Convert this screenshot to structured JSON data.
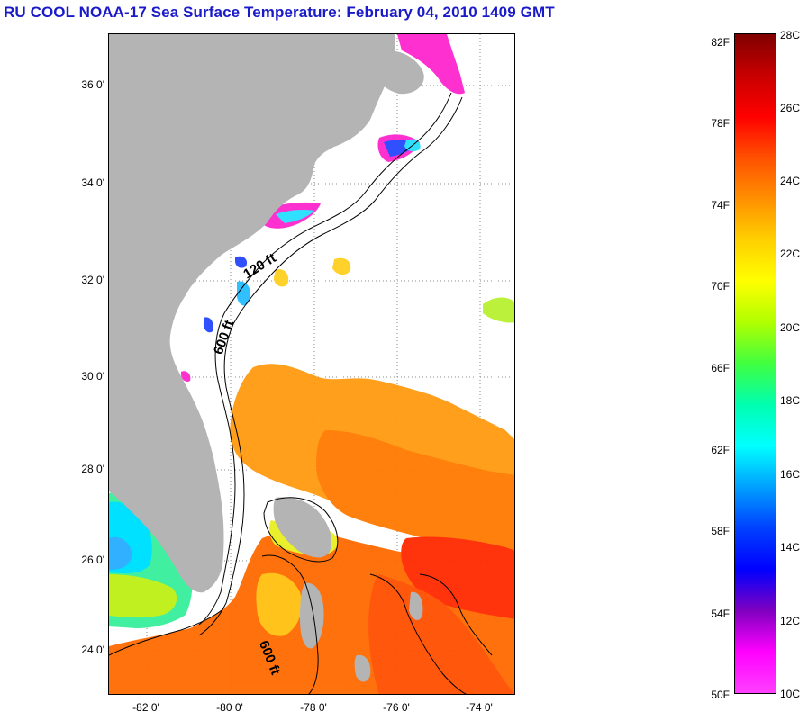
{
  "title": "RU COOL  NOAA-17  Sea Surface Temperature:  February 04, 2010 1409 GMT",
  "map": {
    "lat_labels": [
      "36 0'",
      "34 0'",
      "32 0'",
      "30 0'",
      "28 0'",
      "26 0'",
      "24 0'"
    ],
    "lon_labels": [
      "-82 0'",
      "-80 0'",
      "-78 0'",
      "-76 0'",
      "-74 0'"
    ],
    "contour_labels": [
      "120 ft",
      "600 ft",
      "600 ft"
    ],
    "land_color": "#b4b4b4",
    "no_data_color": "#ffffff"
  },
  "colorbar": {
    "fahrenheit_labels": [
      "82F",
      "78F",
      "74F",
      "70F",
      "66F",
      "62F",
      "58F",
      "54F",
      "50F"
    ],
    "celsius_labels": [
      "28C",
      "26C",
      "24C",
      "22C",
      "20C",
      "18C",
      "16C",
      "14C",
      "12C",
      "10C"
    ],
    "gradient_colors": [
      "#800000",
      "#c80000",
      "#ff0000",
      "#ff5000",
      "#ff9000",
      "#ffd000",
      "#ffff00",
      "#b0ff00",
      "#40ff40",
      "#00ffb0",
      "#00ffff",
      "#00a0ff",
      "#0040ff",
      "#0000ff",
      "#8000c0",
      "#ff00ff",
      "#ff40ff"
    ]
  }
}
